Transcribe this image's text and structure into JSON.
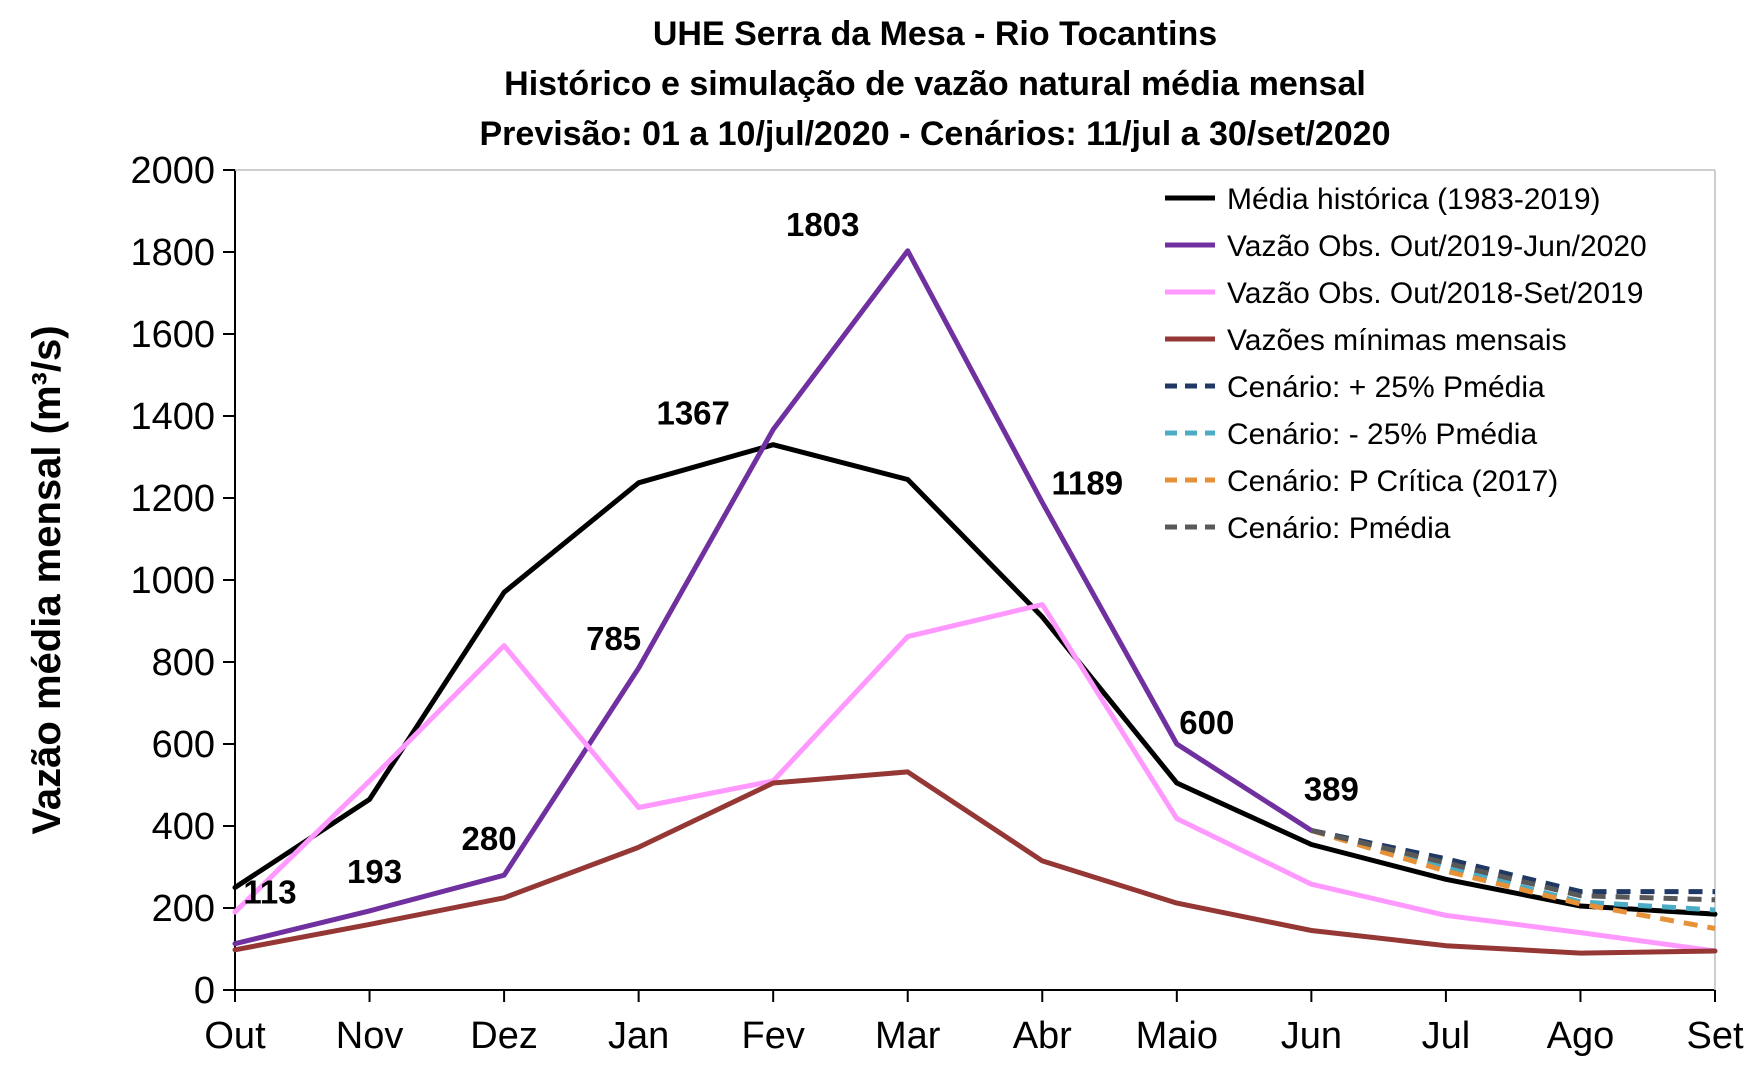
{
  "chart_data": {
    "type": "line",
    "title": [
      "UHE Serra da Mesa - Rio Tocantins",
      "Histórico e simulação de vazão natural média mensal",
      "Previsão: 01 a 10/jul/2020 - Cenários:  11/jul a 30/set/2020"
    ],
    "xlabel": "",
    "ylabel": "Vazão média mensal (m³/s)",
    "categories": [
      "Out",
      "Nov",
      "Dez",
      "Jan",
      "Fev",
      "Mar",
      "Abr",
      "Maio",
      "Jun",
      "Jul",
      "Ago",
      "Set"
    ],
    "ylim": [
      0,
      2000
    ],
    "yticks": [
      0,
      200,
      400,
      600,
      800,
      1000,
      1200,
      1400,
      1600,
      1800,
      2000
    ],
    "grid": false,
    "legend_position": "top-right",
    "series": [
      {
        "name": "Média histórica (1983-2019)",
        "color": "#000000",
        "dash": false,
        "values": [
          250,
          465,
          970,
          1237,
          1330,
          1245,
          910,
          505,
          355,
          270,
          205,
          185
        ]
      },
      {
        "name": "Vazão Obs. Out/2019-Jun/2020",
        "color": "#7030A0",
        "dash": false,
        "values": [
          113,
          193,
          280,
          785,
          1367,
          1803,
          1189,
          600,
          389,
          null,
          null,
          null
        ]
      },
      {
        "name": "Vazão Obs. Out/2018-Set/2019",
        "color": "#FF99FF",
        "dash": false,
        "values": [
          190,
          510,
          840,
          445,
          510,
          862,
          940,
          418,
          258,
          182,
          140,
          95
        ]
      },
      {
        "name": "Vazões mínimas mensais",
        "color": "#953735",
        "dash": false,
        "values": [
          98,
          160,
          225,
          348,
          505,
          532,
          315,
          212,
          145,
          108,
          90,
          95
        ]
      },
      {
        "name": "Cenário: + 25% Pmédia",
        "color": "#1F3864",
        "dash": true,
        "values": [
          null,
          null,
          null,
          null,
          null,
          null,
          null,
          null,
          389,
          320,
          240,
          240
        ]
      },
      {
        "name": "Cenário: - 25% Pmédia",
        "color": "#4BACC6",
        "dash": true,
        "values": [
          null,
          null,
          null,
          null,
          null,
          null,
          null,
          null,
          389,
          300,
          215,
          195
        ]
      },
      {
        "name": "Cenário: P Crítica (2017)",
        "color": "#E69138",
        "dash": true,
        "values": [
          null,
          null,
          null,
          null,
          null,
          null,
          null,
          null,
          389,
          290,
          210,
          150
        ]
      },
      {
        "name": "Cenário: Pmédia",
        "color": "#595959",
        "dash": true,
        "values": [
          null,
          null,
          null,
          null,
          null,
          null,
          null,
          null,
          389,
          310,
          230,
          220
        ]
      }
    ],
    "data_labels": [
      {
        "series": 1,
        "index": 0,
        "text": "113"
      },
      {
        "series": 1,
        "index": 1,
        "text": "193"
      },
      {
        "series": 1,
        "index": 2,
        "text": "280"
      },
      {
        "series": 1,
        "index": 3,
        "text": "785"
      },
      {
        "series": 1,
        "index": 4,
        "text": "1367"
      },
      {
        "series": 1,
        "index": 5,
        "text": "1803"
      },
      {
        "series": 1,
        "index": 6,
        "text": "1189"
      },
      {
        "series": 1,
        "index": 7,
        "text": "600"
      },
      {
        "series": 1,
        "index": 8,
        "text": "389"
      }
    ]
  }
}
